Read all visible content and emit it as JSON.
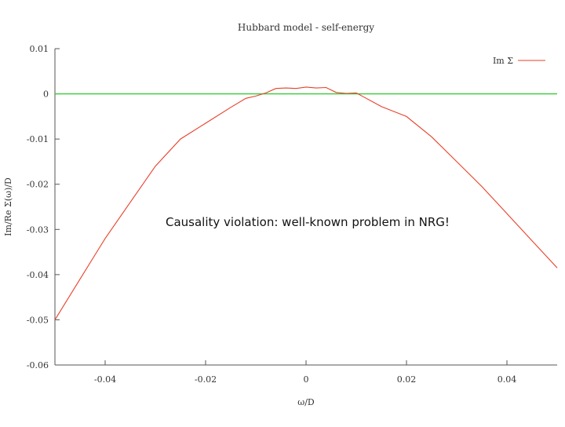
{
  "chart_data": {
    "type": "line",
    "title": "Hubbard model - self-energy",
    "xlabel": "ω/D",
    "ylabel": "Im/Re Σ(ω)/D",
    "xlim": [
      -0.05,
      0.05
    ],
    "ylim": [
      -0.06,
      0.01
    ],
    "x_ticks": [
      -0.04,
      -0.02,
      0,
      0.02,
      0.04
    ],
    "x_tick_labels": [
      "-0.04",
      "-0.02",
      "0",
      "0.02",
      "0.04"
    ],
    "y_ticks": [
      0.01,
      0,
      -0.01,
      -0.02,
      -0.03,
      -0.04,
      -0.05,
      -0.06
    ],
    "y_tick_labels": [
      "0.01",
      "0",
      "-0.01",
      "-0.02",
      "-0.03",
      "-0.04",
      "-0.05",
      "-0.06"
    ],
    "grid": false,
    "legend_position": "top-right",
    "series": [
      {
        "name": "Im Σ",
        "color": "#e8402a",
        "x": [
          -0.05,
          -0.045,
          -0.04,
          -0.035,
          -0.03,
          -0.025,
          -0.02,
          -0.015,
          -0.012,
          -0.01,
          -0.008,
          -0.006,
          -0.004,
          -0.002,
          0,
          0.002,
          0.004,
          0.006,
          0.008,
          0.01,
          0.012,
          0.015,
          0.02,
          0.025,
          0.03,
          0.035,
          0.04,
          0.045,
          0.05
        ],
        "y": [
          -0.05,
          -0.041,
          -0.032,
          -0.024,
          -0.016,
          -0.01,
          -0.0065,
          -0.003,
          -0.001,
          -0.0005,
          0.0002,
          0.0012,
          0.0013,
          0.0012,
          0.0015,
          0.0013,
          0.0014,
          0.0003,
          0.0001,
          0.0002,
          -0.001,
          -0.0028,
          -0.005,
          -0.0095,
          -0.015,
          -0.0205,
          -0.0265,
          -0.0325,
          -0.0385
        ]
      }
    ],
    "reference_line": {
      "y": 0,
      "color": "#33cc33"
    },
    "annotation": "Causality violation: well-known problem in NRG!"
  }
}
